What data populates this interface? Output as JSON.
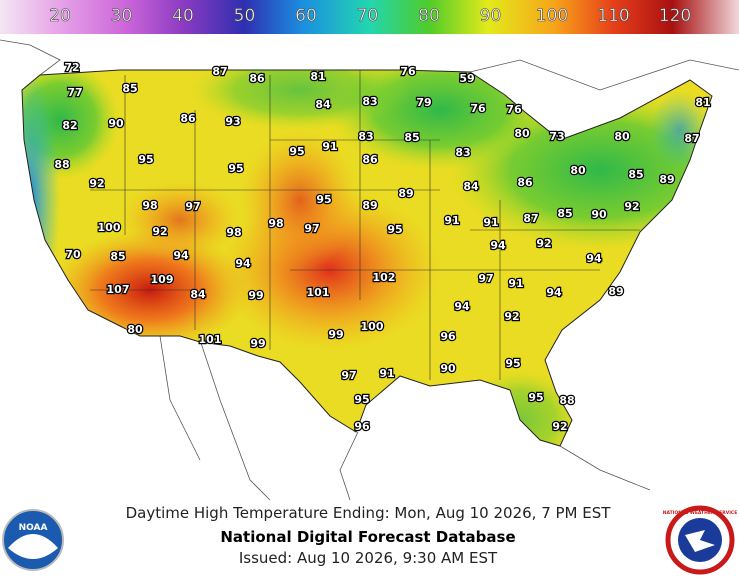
{
  "legend": {
    "ticks": [
      20,
      30,
      40,
      50,
      60,
      70,
      80,
      90,
      100,
      110,
      120
    ]
  },
  "labels": [
    72,
    77,
    85,
    87,
    86,
    81,
    76,
    59,
    82,
    90,
    86,
    93,
    84,
    83,
    79,
    76,
    76,
    81,
    88,
    95,
    95,
    95,
    91,
    83,
    85,
    83,
    80,
    73,
    80,
    87,
    92,
    86,
    80,
    85,
    89,
    84,
    86,
    98,
    97,
    95,
    89,
    89,
    91,
    91,
    87,
    85,
    90,
    92,
    100,
    92,
    98,
    98,
    97,
    95,
    94,
    92,
    70,
    85,
    94,
    94,
    94,
    109,
    102,
    97,
    91,
    94,
    89,
    107,
    84,
    99,
    101,
    94,
    92,
    80,
    100,
    99,
    96,
    101,
    99,
    90,
    95,
    97,
    91,
    95,
    95,
    88,
    96,
    92
  ],
  "footer": {
    "line1": "Daytime High Temperature Ending: Mon, Aug 10 2026, 7 PM EST",
    "title": "National Digital Forecast Database",
    "issued": "Issued: Aug 10 2026, 9:30 AM EST"
  },
  "logos": {
    "left": "NOAA",
    "right": "NATIONAL WEATHER SERVICE"
  }
}
